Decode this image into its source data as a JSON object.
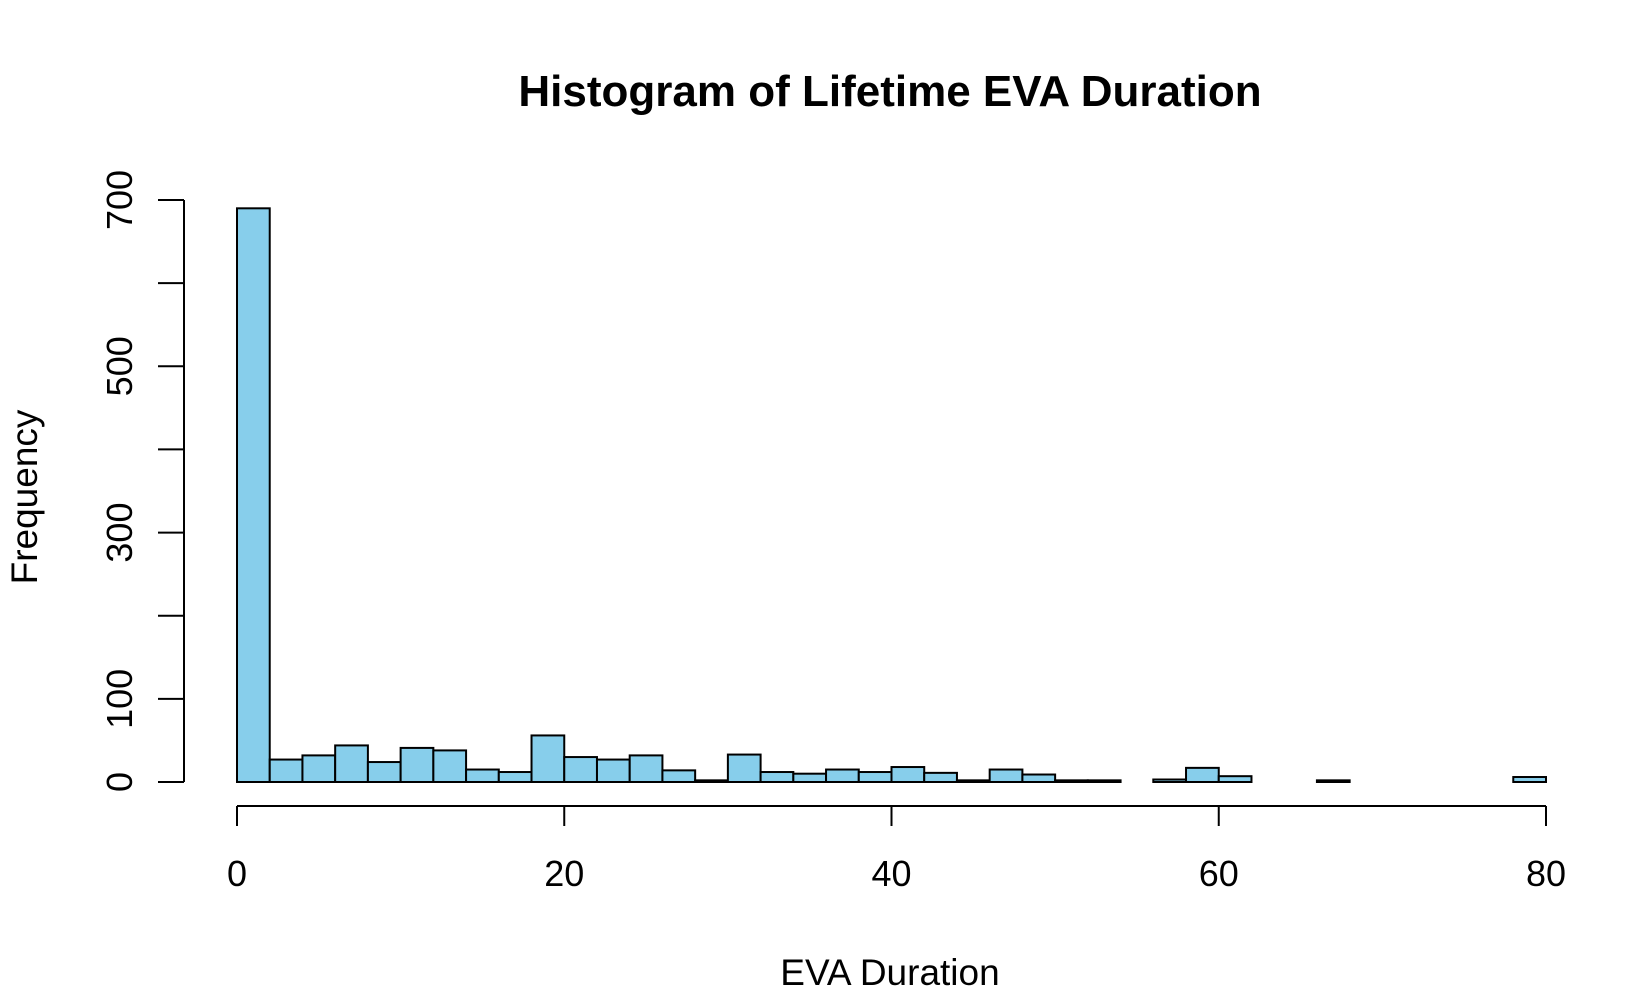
{
  "chart_data": {
    "type": "bar",
    "title": "Histogram of Lifetime EVA Duration",
    "xlabel": "EVA Duration",
    "ylabel": "Frequency",
    "bar_color": "#87CEEB",
    "edge_color": "#000000",
    "xlim": [
      0,
      80
    ],
    "ylim": [
      0,
      700
    ],
    "x_ticks": [
      0,
      20,
      40,
      60,
      80
    ],
    "y_ticks": [
      0,
      100,
      200,
      300,
      400,
      500,
      600,
      700
    ],
    "y_tick_labels": [
      "0",
      "100",
      "",
      "300",
      "",
      "500",
      "",
      "700"
    ],
    "bin_width": 2,
    "bin_edges": [
      0,
      2,
      4,
      6,
      8,
      10,
      12,
      14,
      16,
      18,
      20,
      22,
      24,
      26,
      28,
      30,
      32,
      34,
      36,
      38,
      40,
      42,
      44,
      46,
      48,
      50,
      52,
      54,
      56,
      58,
      60,
      62,
      64,
      66,
      68,
      70,
      72,
      74,
      76,
      78,
      80
    ],
    "values": [
      690,
      27,
      32,
      44,
      24,
      41,
      38,
      15,
      12,
      56,
      30,
      27,
      32,
      14,
      2,
      33,
      12,
      10,
      15,
      12,
      18,
      11,
      2,
      15,
      9,
      2,
      2,
      0,
      3,
      17,
      7,
      0,
      0,
      2,
      0,
      0,
      0,
      0,
      0,
      6
    ],
    "grid": false,
    "legend": "none"
  }
}
